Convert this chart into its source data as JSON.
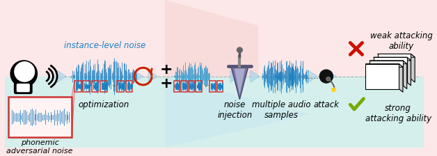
{
  "bg_top_color": "#fce8e8",
  "bg_bottom_color": "#d5efec",
  "waveform_color": "#1a7fc1",
  "waveform_color2": "#3399cc",
  "arrow_color": "#b8dde8",
  "red_x_color": "#cc1100",
  "green_check_color": "#77aa00",
  "dashed_line_color": "#aaaaaa",
  "phonemic_box_color": "#cc3333",
  "labels": {
    "instance_noise": "instance-level noise",
    "optimization": "optimization",
    "phonemic": "phonemic\nadversarial noise",
    "noise_injection": "noise\ninjection",
    "multiple_audio": "multiple audio\nsamples",
    "attack": "attack",
    "weak": "weak attacking\nability",
    "strong": "strong\nattacking ability",
    "ellipsis": "......"
  },
  "font_size": 8.5
}
